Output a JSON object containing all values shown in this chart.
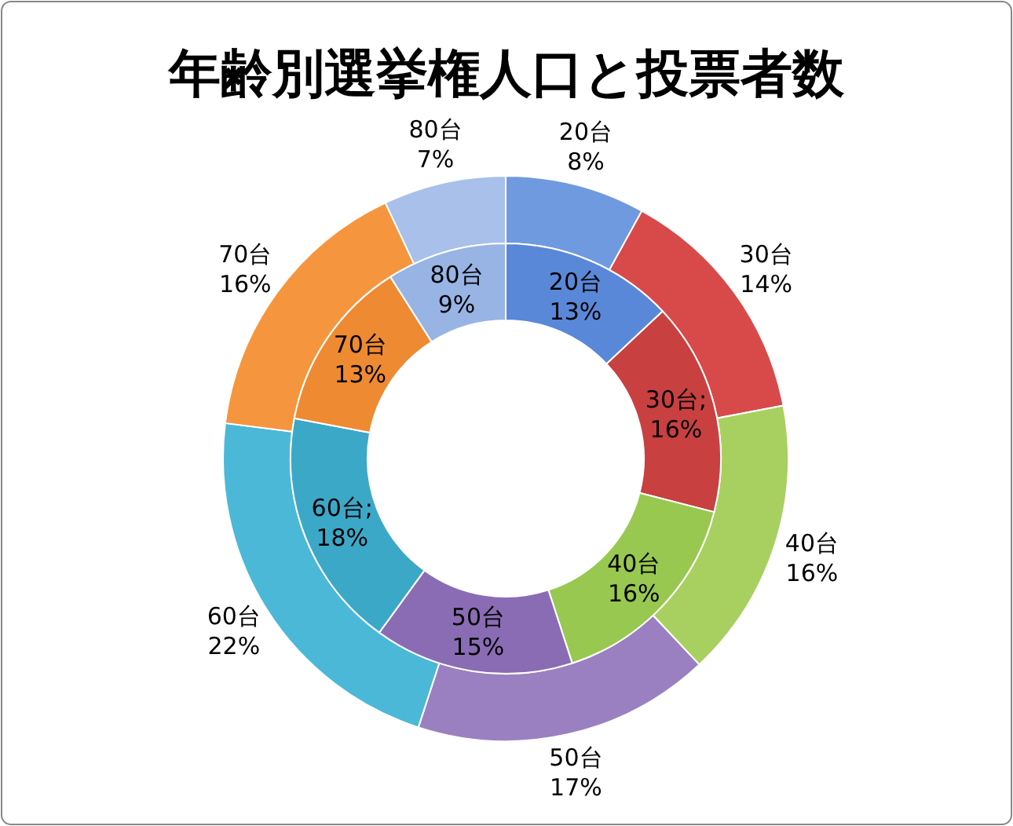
{
  "chart_data": {
    "type": "donut",
    "title": "年齢別選挙権人口と投票者数",
    "categories": [
      "20台",
      "30台",
      "40台",
      "50台",
      "60台",
      "70台",
      "80台"
    ],
    "series": [
      {
        "values": [
          8,
          14,
          16,
          17,
          22,
          16,
          7
        ],
        "value_labels": [
          "8%",
          "14%",
          "16%",
          "17%",
          "22%",
          "16%",
          "7%"
        ],
        "colors": [
          "#6f9ae0",
          "#d84a4a",
          "#a8d060",
          "#9a80c0",
          "#4cb8d8",
          "#f5963e",
          "#a8c0ea"
        ]
      },
      {
        "values": [
          13,
          16,
          16,
          15,
          18,
          13,
          9
        ],
        "value_labels": [
          "20台\n13%",
          "30台;\n16%",
          "40台\n16%",
          "50台\n15%",
          "60台;\n18%",
          "70台\n13%",
          "80台\n9%"
        ],
        "colors": [
          "#5a88d8",
          "#c84040",
          "#98c850",
          "#8a6cb4",
          "#3ca8c8",
          "#ee8a32",
          "#98b4e4"
        ]
      }
    ]
  }
}
